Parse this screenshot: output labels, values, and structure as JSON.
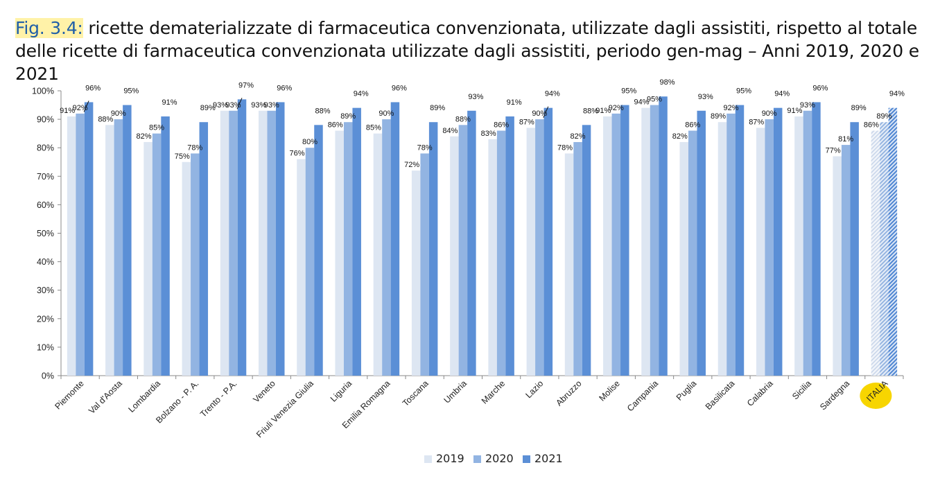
{
  "title": {
    "fig_label": "Fig. 3.4:",
    "text": " ricette dematerializzate di farmaceutica convenzionata, utilizzate dagli assistiti, rispetto al totale delle ricette di farmaceutica convenzionata utilizzate dagli assistiti, periodo gen-mag – Anni 2019, 2020 e 2021"
  },
  "colors": {
    "s2019": "#dde6f2",
    "s2020": "#92b4e2",
    "s2021": "#5b8fd6",
    "highlight": "#f7d500"
  },
  "chart_data": {
    "type": "bar",
    "categories": [
      "Piemonte",
      "Val d'Aosta",
      "Lombardia",
      "Bolzano - P. A.",
      "Trento -  P.A.",
      "Veneto",
      "Friuli Venezia Giulia",
      "Liguria",
      "Emilia Romagna",
      "Toscana",
      "Umbria",
      "Marche",
      "Lazio",
      "Abruzzo",
      "Molise",
      "Campania",
      "Puglia",
      "Basilicata",
      "Calabria",
      "Sicilia",
      "Sardegna",
      "ITALIA"
    ],
    "series": [
      {
        "name": "2019",
        "values": [
          91,
          88,
          82,
          75,
          93,
          93,
          76,
          86,
          85,
          72,
          84,
          83,
          87,
          78,
          91,
          94,
          82,
          89,
          87,
          91,
          77,
          86
        ],
        "labels": [
          "91%",
          "88%",
          "82%",
          "75%",
          "93%",
          "93%",
          "76%",
          "86%",
          "85%",
          "72%",
          "84%",
          "83%",
          "87%",
          "78%",
          "91%",
          "94%",
          "82%",
          "89%",
          "87%",
          "91%",
          "77%",
          "86%"
        ]
      },
      {
        "name": "2020",
        "values": [
          92,
          90,
          85,
          78,
          93,
          93,
          80,
          89,
          90,
          78,
          88,
          86,
          90,
          82,
          92,
          95,
          86,
          92,
          90,
          93,
          81,
          89
        ],
        "labels": [
          "92%",
          "90%",
          "85%",
          "78%",
          "93%",
          "93%",
          "80%",
          "89%",
          "90%",
          "78%",
          "88%",
          "86%",
          "90%",
          "82%",
          "92%",
          "95%",
          "86%",
          "92%",
          "90%",
          "93%",
          "81%",
          "89%"
        ]
      },
      {
        "name": "2021",
        "values": [
          96,
          95,
          91,
          89,
          97,
          96,
          88,
          94,
          96,
          89,
          93,
          91,
          94,
          88,
          95,
          98,
          93,
          95,
          94,
          96,
          89,
          94
        ],
        "labels": [
          "96%",
          "95%",
          "91%",
          "89%",
          "97%",
          "96%",
          "88%",
          "94%",
          "96%",
          "89%",
          "93%",
          "91%",
          "94%",
          "88%",
          "95%",
          "98%",
          "93%",
          "95%",
          "94%",
          "96%",
          "89%",
          "94%"
        ]
      }
    ],
    "ylim": [
      0,
      100
    ],
    "yticks": [
      "0%",
      "10%",
      "20%",
      "30%",
      "40%",
      "50%",
      "60%",
      "70%",
      "80%",
      "90%",
      "100%"
    ],
    "highlight_category": "ITALIA",
    "legend_position": "bottom",
    "grid": false
  }
}
